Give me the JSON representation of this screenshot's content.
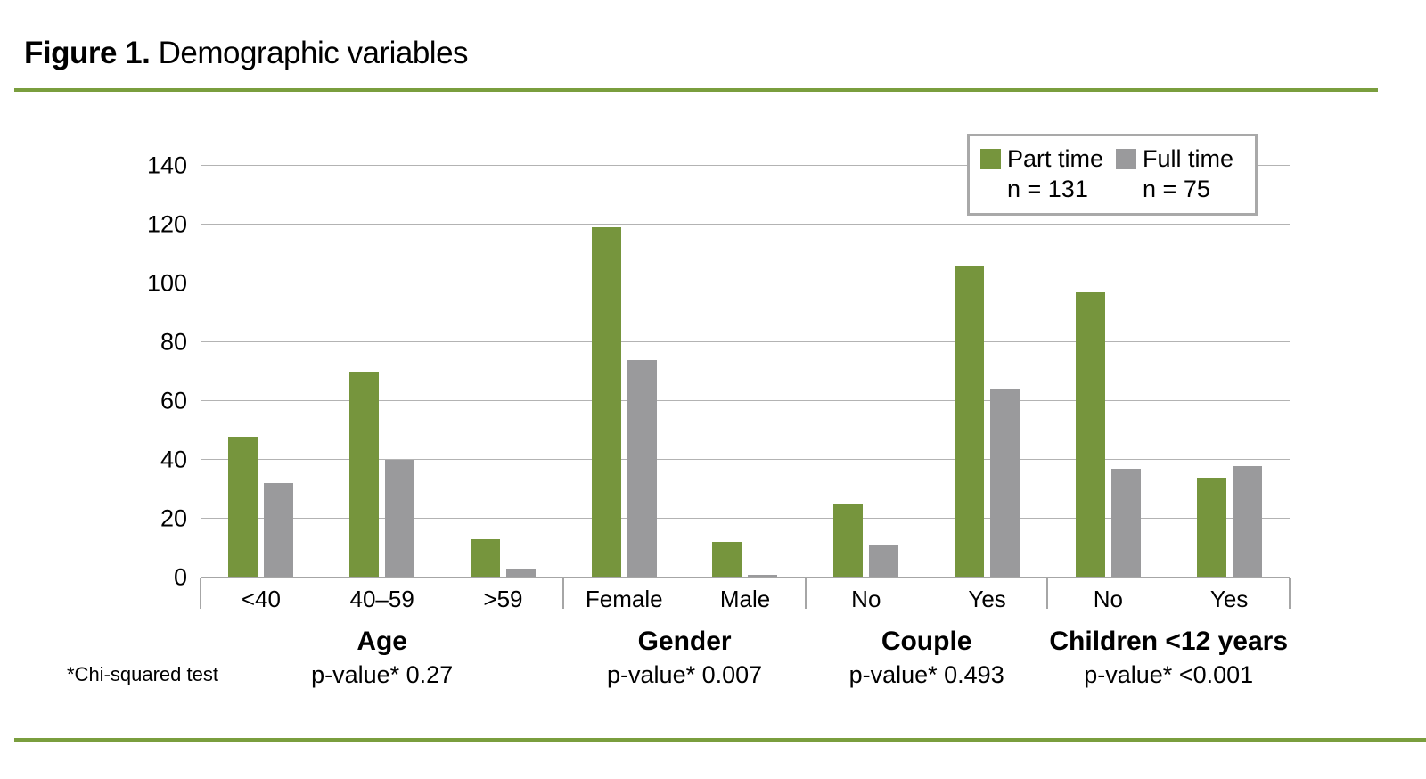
{
  "title": {
    "prefix": "Figure 1.",
    "rest": " Demographic variables"
  },
  "footnote": "*Chi-squared test",
  "colors": {
    "part_time": "#76953D",
    "full_time": "#9A9A9C",
    "rule_green": "#7A9E3E",
    "grid": "#B3B3B3",
    "axis": "#A6A6A6"
  },
  "legend": {
    "items": [
      {
        "label": "Part time",
        "n_label": "n = 131",
        "color": "#76953D"
      },
      {
        "label": "Full time",
        "n_label": "n = 75",
        "color": "#9A9A9C"
      }
    ]
  },
  "chart_data": {
    "type": "bar",
    "title": "Figure 1. Demographic variables",
    "ylim": [
      0,
      140
    ],
    "yticks": [
      0,
      20,
      40,
      60,
      80,
      100,
      120,
      140
    ],
    "grid": true,
    "legend_position": "top-right",
    "series": [
      {
        "name": "Part time",
        "n": 131,
        "color": "#76953D"
      },
      {
        "name": "Full time",
        "n": 75,
        "color": "#9A9A9C"
      }
    ],
    "groups": [
      {
        "label": "Age",
        "p_value": "p-value* 0.27",
        "categories": [
          "<40",
          "40–59",
          ">59"
        ],
        "values": {
          "Part time": [
            48,
            70,
            13
          ],
          "Full time": [
            32,
            40,
            3
          ]
        }
      },
      {
        "label": "Gender",
        "p_value": "p-value* 0.007",
        "categories": [
          "Female",
          "Male"
        ],
        "values": {
          "Part time": [
            119,
            12
          ],
          "Full time": [
            74,
            1
          ]
        }
      },
      {
        "label": "Couple",
        "p_value": "p-value* 0.493",
        "categories": [
          "No",
          "Yes"
        ],
        "values": {
          "Part time": [
            25,
            106
          ],
          "Full time": [
            11,
            64
          ]
        }
      },
      {
        "label": "Children <12 years",
        "p_value": "p-value* <0.001",
        "categories": [
          "No",
          "Yes"
        ],
        "values": {
          "Part time": [
            97,
            34
          ],
          "Full time": [
            37,
            38
          ]
        }
      }
    ]
  }
}
